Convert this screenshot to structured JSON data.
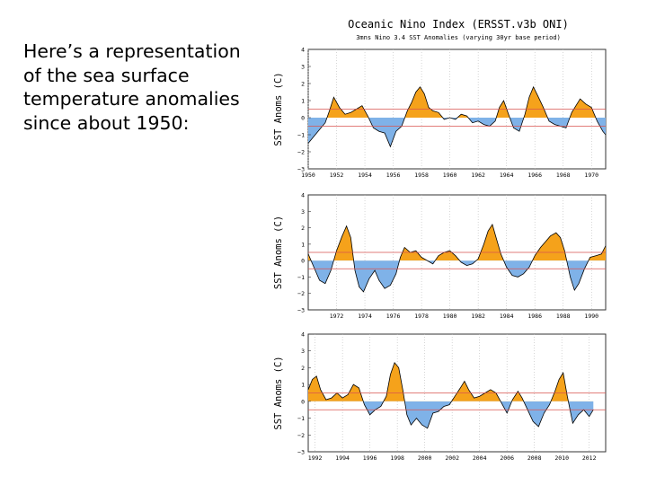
{
  "caption": "Here’s a representation of the sea surface temperature anomalies since about 1950:",
  "colors": {
    "positive": "#f5a21b",
    "negative": "#7fb2e8",
    "threshold": "#d9534f",
    "outline": "#000000"
  },
  "chart_data": [
    {
      "type": "area",
      "title": "Oceanic Nino Index (ERSST.v3b ONI)",
      "subtitle": "3mns Nino 3.4 SST Anomalies (varying 30yr base period)",
      "ylabel": "SST Anoms (C)",
      "ylim": [
        -3,
        4
      ],
      "yticks": [
        "−3",
        "−2",
        "−1",
        "0",
        "1",
        "2",
        "3",
        "4"
      ],
      "xlim": [
        1950,
        1971
      ],
      "xticks": [
        [
          "1950",
          "1950"
        ],
        [
          "1952",
          "1952"
        ],
        [
          "1954",
          "1954"
        ],
        [
          "1956",
          "1956"
        ],
        [
          "1958",
          "1958"
        ],
        [
          "1960",
          "1960"
        ],
        [
          "1962",
          "1962"
        ],
        [
          "1964",
          "1964"
        ],
        [
          "1966",
          "1966"
        ],
        [
          "1968",
          "1968"
        ],
        [
          "1970",
          "1970"
        ]
      ],
      "thresholds": [
        0.5,
        -0.5
      ],
      "x": [
        1950.0,
        1950.4,
        1950.8,
        1951.2,
        1951.5,
        1951.8,
        1952.2,
        1952.6,
        1953.0,
        1953.4,
        1953.8,
        1954.2,
        1954.6,
        1955.0,
        1955.4,
        1955.8,
        1956.2,
        1956.6,
        1957.0,
        1957.3,
        1957.6,
        1957.9,
        1958.2,
        1958.5,
        1958.8,
        1959.2,
        1959.6,
        1960.0,
        1960.4,
        1960.8,
        1961.2,
        1961.6,
        1962.0,
        1962.4,
        1962.8,
        1963.2,
        1963.5,
        1963.8,
        1964.1,
        1964.5,
        1964.9,
        1965.3,
        1965.6,
        1965.9,
        1966.2,
        1966.6,
        1967.0,
        1967.4,
        1967.8,
        1968.2,
        1968.6,
        1968.9,
        1969.2,
        1969.6,
        1970.0,
        1970.4,
        1970.8,
        1971.0
      ],
      "y": [
        -1.5,
        -1.1,
        -0.7,
        -0.3,
        0.4,
        1.2,
        0.6,
        0.2,
        0.3,
        0.5,
        0.7,
        0.1,
        -0.6,
        -0.8,
        -0.9,
        -1.7,
        -0.8,
        -0.5,
        0.4,
        0.9,
        1.5,
        1.8,
        1.4,
        0.6,
        0.4,
        0.3,
        -0.1,
        0.0,
        -0.1,
        0.2,
        0.1,
        -0.3,
        -0.2,
        -0.4,
        -0.5,
        -0.2,
        0.6,
        1.0,
        0.3,
        -0.6,
        -0.8,
        0.2,
        1.2,
        1.8,
        1.3,
        0.6,
        -0.2,
        -0.4,
        -0.5,
        -0.6,
        0.3,
        0.7,
        1.1,
        0.8,
        0.6,
        -0.2,
        -0.8,
        -1.0
      ]
    },
    {
      "type": "area",
      "ylabel": "SST Anoms (C)",
      "ylim": [
        -3,
        4
      ],
      "yticks": [
        "−3",
        "−2",
        "−1",
        "0",
        "1",
        "2",
        "3",
        "4"
      ],
      "xlim": [
        1970,
        1991
      ],
      "xticks": [
        [
          "1972",
          "1972"
        ],
        [
          "1974",
          "1974"
        ],
        [
          "1976",
          "1976"
        ],
        [
          "1978",
          "1978"
        ],
        [
          "1980",
          "1980"
        ],
        [
          "1982",
          "1982"
        ],
        [
          "1984",
          "1984"
        ],
        [
          "1986",
          "1986"
        ],
        [
          "1988",
          "1988"
        ],
        [
          "1990",
          "1990"
        ]
      ],
      "thresholds": [
        0.5,
        -0.5
      ],
      "x": [
        1970.0,
        1970.4,
        1970.8,
        1971.2,
        1971.6,
        1972.0,
        1972.4,
        1972.7,
        1973.0,
        1973.3,
        1973.6,
        1973.9,
        1974.3,
        1974.7,
        1975.0,
        1975.4,
        1975.8,
        1976.2,
        1976.5,
        1976.8,
        1977.2,
        1977.6,
        1978.0,
        1978.4,
        1978.8,
        1979.2,
        1979.6,
        1980.0,
        1980.4,
        1980.8,
        1981.2,
        1981.6,
        1982.0,
        1982.4,
        1982.7,
        1983.0,
        1983.3,
        1983.6,
        1984.0,
        1984.4,
        1984.8,
        1985.2,
        1985.6,
        1986.0,
        1986.4,
        1986.8,
        1987.1,
        1987.5,
        1987.8,
        1988.1,
        1988.5,
        1988.8,
        1989.1,
        1989.5,
        1989.9,
        1990.3,
        1990.7,
        1991.0
      ],
      "y": [
        0.4,
        -0.4,
        -1.2,
        -1.4,
        -0.6,
        0.6,
        1.5,
        2.1,
        1.4,
        -0.6,
        -1.6,
        -1.9,
        -1.1,
        -0.6,
        -1.2,
        -1.7,
        -1.5,
        -0.8,
        0.2,
        0.8,
        0.5,
        0.6,
        0.2,
        0.0,
        -0.2,
        0.3,
        0.5,
        0.6,
        0.3,
        -0.1,
        -0.3,
        -0.2,
        0.1,
        1.0,
        1.8,
        2.2,
        1.3,
        0.4,
        -0.4,
        -0.9,
        -1.0,
        -0.8,
        -0.4,
        0.3,
        0.8,
        1.2,
        1.5,
        1.7,
        1.4,
        0.6,
        -1.0,
        -1.8,
        -1.4,
        -0.5,
        0.2,
        0.3,
        0.4,
        0.9
      ]
    },
    {
      "type": "area",
      "ylabel": "SST Anoms (C)",
      "ylim": [
        -3,
        4
      ],
      "yticks": [
        "−3",
        "−2",
        "−1",
        "0",
        "1",
        "2",
        "3",
        "4"
      ],
      "xlim": [
        1991.5,
        2013.2
      ],
      "xticks": [
        [
          "1992",
          "1992"
        ],
        [
          "1994",
          "1994"
        ],
        [
          "1996",
          "1996"
        ],
        [
          "1998",
          "1998"
        ],
        [
          "2000",
          "2000"
        ],
        [
          "2002",
          "2002"
        ],
        [
          "2004",
          "2004"
        ],
        [
          "2006",
          "2006"
        ],
        [
          "2008",
          "2008"
        ],
        [
          "2010",
          "2010"
        ],
        [
          "2012",
          "2012"
        ]
      ],
      "thresholds": [
        0.5,
        -0.5
      ],
      "x": [
        1991.5,
        1991.8,
        1992.1,
        1992.4,
        1992.8,
        1993.2,
        1993.6,
        1994.0,
        1994.4,
        1994.8,
        1995.2,
        1995.6,
        1996.0,
        1996.4,
        1996.8,
        1997.2,
        1997.5,
        1997.8,
        1998.1,
        1998.4,
        1998.7,
        1999.0,
        1999.4,
        1999.8,
        2000.2,
        2000.6,
        2001.0,
        2001.4,
        2001.8,
        2002.2,
        2002.6,
        2002.9,
        2003.2,
        2003.6,
        2004.0,
        2004.4,
        2004.8,
        2005.2,
        2005.6,
        2006.0,
        2006.4,
        2006.8,
        2007.1,
        2007.5,
        2007.9,
        2008.3,
        2008.7,
        2009.1,
        2009.5,
        2009.8,
        2010.1,
        2010.4,
        2010.8,
        2011.2,
        2011.6,
        2012.0,
        2012.3
      ],
      "y": [
        0.7,
        1.3,
        1.5,
        0.7,
        0.1,
        0.2,
        0.5,
        0.2,
        0.4,
        1.0,
        0.8,
        -0.2,
        -0.8,
        -0.5,
        -0.3,
        0.3,
        1.6,
        2.3,
        2.0,
        0.7,
        -0.8,
        -1.4,
        -1.0,
        -1.4,
        -1.6,
        -0.7,
        -0.6,
        -0.3,
        -0.2,
        0.3,
        0.8,
        1.2,
        0.7,
        0.2,
        0.3,
        0.5,
        0.7,
        0.5,
        -0.1,
        -0.7,
        0.1,
        0.6,
        0.2,
        -0.5,
        -1.2,
        -1.5,
        -0.7,
        -0.2,
        0.6,
        1.3,
        1.7,
        0.3,
        -1.3,
        -0.8,
        -0.5,
        -0.9,
        -0.5
      ]
    }
  ]
}
